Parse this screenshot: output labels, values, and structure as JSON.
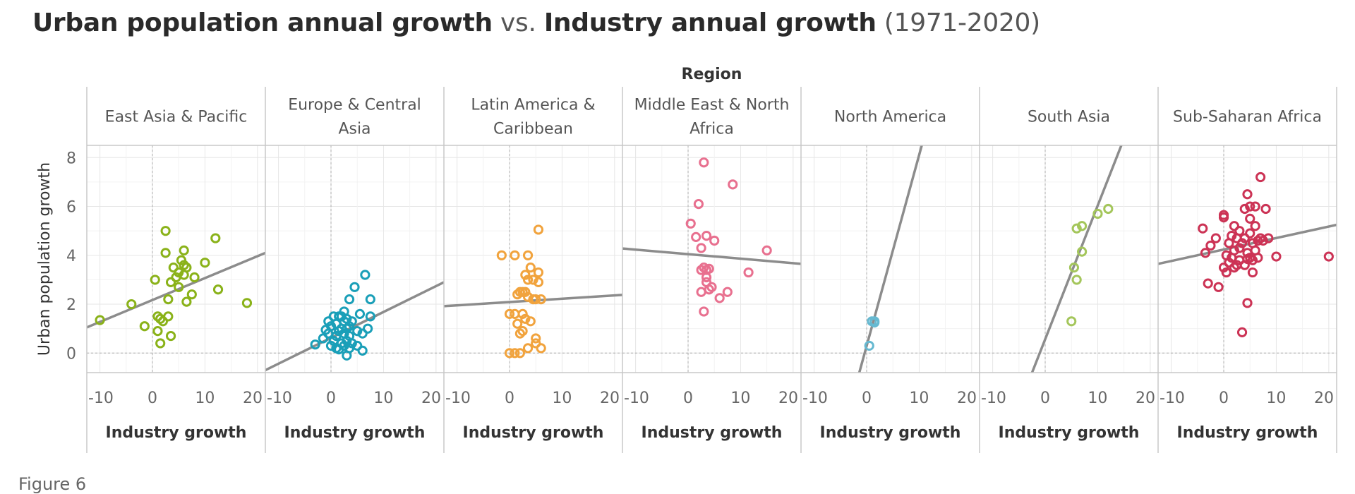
{
  "title": {
    "part1": "Urban population annual growth",
    "part2": "vs.",
    "part3": "Industry annual growth",
    "part4": "(1971-2020)"
  },
  "caption": "Figure 6",
  "chart_data": {
    "type": "scatter",
    "facet_label": "Region",
    "xlabel": "Industry growth",
    "ylabel": "Urban population growth",
    "xlim": [
      -12.5,
      21.5
    ],
    "ylim": [
      -0.8,
      8.5
    ],
    "xticks": [
      -10,
      0,
      10,
      20
    ],
    "yticks": [
      0,
      2,
      4,
      6,
      8
    ],
    "grid": true,
    "trend_lines": true,
    "panels": [
      {
        "region": "East Asia & Pacific",
        "label_lines": [
          "East Asia & Pacific"
        ],
        "color": "#8ab219",
        "trend": [
          [
            -12.5,
            1.05
          ],
          [
            21.5,
            4.1
          ]
        ],
        "points": [
          [
            -10,
            1.35
          ],
          [
            -4,
            2
          ],
          [
            -1.5,
            1.1
          ],
          [
            0.5,
            3
          ],
          [
            1,
            1.5
          ],
          [
            1,
            0.9
          ],
          [
            1.5,
            1.4
          ],
          [
            2,
            1.3
          ],
          [
            1.5,
            0.4
          ],
          [
            2.5,
            5
          ],
          [
            2.5,
            4.1
          ],
          [
            3,
            1.5
          ],
          [
            3,
            2.2
          ],
          [
            3.5,
            2.9
          ],
          [
            3.5,
            0.7
          ],
          [
            4,
            3.5
          ],
          [
            4.5,
            3.1
          ],
          [
            5,
            2.7
          ],
          [
            5,
            3.3
          ],
          [
            5.5,
            3.8
          ],
          [
            6,
            4.2
          ],
          [
            6,
            3.6
          ],
          [
            6.5,
            3.5
          ],
          [
            6,
            3.2
          ],
          [
            6.5,
            2.1
          ],
          [
            7.5,
            2.4
          ],
          [
            8,
            3.1
          ],
          [
            10,
            3.7
          ],
          [
            12,
            4.7
          ],
          [
            12.5,
            2.6
          ],
          [
            18,
            2.05
          ]
        ]
      },
      {
        "region": "Europe & Central Asia",
        "label_lines": [
          "Europe & Central",
          "Asia"
        ],
        "color": "#1a9fb8",
        "trend": [
          [
            -12.5,
            -0.7
          ],
          [
            21.5,
            2.9
          ]
        ],
        "points": [
          [
            -3,
            0.35
          ],
          [
            -1.5,
            0.6
          ],
          [
            -1,
            0.95
          ],
          [
            -0.5,
            1.3
          ],
          [
            0,
            0.3
          ],
          [
            0,
            1.1
          ],
          [
            0.5,
            0.5
          ],
          [
            0.5,
            1.5
          ],
          [
            1,
            0.7
          ],
          [
            1,
            1.2
          ],
          [
            1.5,
            0.15
          ],
          [
            1.5,
            0.9
          ],
          [
            1.5,
            1.5
          ],
          [
            2,
            0.4
          ],
          [
            2,
            1.0
          ],
          [
            2,
            1.5
          ],
          [
            2.5,
            0.3
          ],
          [
            2.5,
            0.8
          ],
          [
            2.5,
            1.3
          ],
          [
            2.5,
            1.7
          ],
          [
            3,
            -0.1
          ],
          [
            3,
            0.5
          ],
          [
            3,
            1.0
          ],
          [
            3,
            1.4
          ],
          [
            3.5,
            0.2
          ],
          [
            3.5,
            0.7
          ],
          [
            3.5,
            1.1
          ],
          [
            3.5,
            2.2
          ],
          [
            4,
            0.4
          ],
          [
            4,
            1.3
          ],
          [
            4.5,
            2.7
          ],
          [
            5,
            0.3
          ],
          [
            5,
            0.9
          ],
          [
            5.5,
            1.6
          ],
          [
            6,
            0.1
          ],
          [
            6,
            0.8
          ],
          [
            6.5,
            3.2
          ],
          [
            7,
            1.0
          ],
          [
            7.5,
            2.2
          ],
          [
            7.5,
            1.5
          ],
          [
            1,
            0.2
          ],
          [
            -0.5,
            0.8
          ]
        ]
      },
      {
        "region": "Latin America & Caribbean",
        "label_lines": [
          "Latin America &",
          "Caribbean"
        ],
        "color": "#f1a33d",
        "trend": [
          [
            -12.5,
            1.92
          ],
          [
            21.5,
            2.38
          ]
        ],
        "points": [
          [
            -1.5,
            4
          ],
          [
            0,
            1.6
          ],
          [
            0,
            0
          ],
          [
            1,
            4
          ],
          [
            1,
            1.6
          ],
          [
            1,
            0
          ],
          [
            1.5,
            2.4
          ],
          [
            1.5,
            1.2
          ],
          [
            2,
            2.5
          ],
          [
            2,
            0.8
          ],
          [
            2,
            0
          ],
          [
            2.5,
            2.5
          ],
          [
            2.5,
            1.6
          ],
          [
            2.5,
            0.9
          ],
          [
            3,
            3.2
          ],
          [
            3,
            2.5
          ],
          [
            3,
            1.4
          ],
          [
            3.5,
            4
          ],
          [
            3.5,
            3
          ],
          [
            3.5,
            2.3
          ],
          [
            3.5,
            0.2
          ],
          [
            4,
            3.5
          ],
          [
            4,
            1.3
          ],
          [
            4.5,
            3
          ],
          [
            4.5,
            2.2
          ],
          [
            5,
            0.6
          ],
          [
            5,
            0.4
          ],
          [
            5,
            2.2
          ],
          [
            5.5,
            2.9
          ],
          [
            5.5,
            3.3
          ],
          [
            5.5,
            5.05
          ],
          [
            6,
            0.2
          ],
          [
            6,
            2.2
          ]
        ]
      },
      {
        "region": "Middle East & North Africa",
        "label_lines": [
          "Middle East & North",
          "Africa"
        ],
        "color": "#e8708f",
        "trend": [
          [
            -12.5,
            4.28
          ],
          [
            21.5,
            3.65
          ]
        ],
        "points": [
          [
            0.5,
            5.3
          ],
          [
            1.5,
            4.75
          ],
          [
            2,
            6.1
          ],
          [
            2.5,
            4.3
          ],
          [
            2.5,
            3.4
          ],
          [
            2.5,
            2.5
          ],
          [
            3,
            7.8
          ],
          [
            3,
            3.5
          ],
          [
            3,
            1.7
          ],
          [
            3.5,
            4.8
          ],
          [
            3.5,
            3.4
          ],
          [
            3.5,
            3.1
          ],
          [
            3.5,
            2.9
          ],
          [
            4,
            3.45
          ],
          [
            4,
            2.6
          ],
          [
            4.5,
            2.7
          ],
          [
            5,
            4.6
          ],
          [
            6,
            2.25
          ],
          [
            7.5,
            2.5
          ],
          [
            8.5,
            6.9
          ],
          [
            11.5,
            3.3
          ],
          [
            15,
            4.2
          ]
        ]
      },
      {
        "region": "North America",
        "label_lines": [
          "North America"
        ],
        "color": "#66b9d1",
        "trend": [
          [
            -1.4,
            -0.8
          ],
          [
            10.5,
            8.5
          ]
        ],
        "points": [
          [
            0.5,
            0.3
          ],
          [
            1,
            1.3
          ],
          [
            1.5,
            1.3
          ],
          [
            1.5,
            1.25
          ]
        ]
      },
      {
        "region": "South Asia",
        "label_lines": [
          "South Asia"
        ],
        "color": "#a4c65b",
        "trend": [
          [
            -2.5,
            -0.8
          ],
          [
            14.5,
            8.5
          ]
        ],
        "points": [
          [
            5,
            1.3
          ],
          [
            5.5,
            3.5
          ],
          [
            6,
            3.0
          ],
          [
            6,
            5.1
          ],
          [
            7,
            4.15
          ],
          [
            7,
            5.2
          ],
          [
            10,
            5.7
          ],
          [
            12,
            5.9
          ]
        ]
      },
      {
        "region": "Sub-Saharan Africa",
        "label_lines": [
          "Sub-Saharan Africa"
        ],
        "color": "#cc3355",
        "trend": [
          [
            -12.5,
            3.65
          ],
          [
            21.5,
            5.25
          ]
        ],
        "points": [
          [
            -4,
            5.1
          ],
          [
            -3.5,
            4.1
          ],
          [
            -3,
            2.85
          ],
          [
            -2.5,
            4.4
          ],
          [
            -1.5,
            4.7
          ],
          [
            -1,
            2.7
          ],
          [
            0,
            3.5
          ],
          [
            0,
            5.55
          ],
          [
            0,
            5.65
          ],
          [
            0.5,
            3.3
          ],
          [
            0.5,
            4.0
          ],
          [
            1,
            3.7
          ],
          [
            1,
            4.5
          ],
          [
            1.5,
            4.8
          ],
          [
            1.5,
            3.9
          ],
          [
            2,
            3.5
          ],
          [
            2,
            4.2
          ],
          [
            2,
            5.2
          ],
          [
            2.5,
            3.6
          ],
          [
            2.5,
            4.7
          ],
          [
            3,
            3.8
          ],
          [
            3,
            4.3
          ],
          [
            3,
            5
          ],
          [
            3.5,
            0.85
          ],
          [
            3.5,
            4.5
          ],
          [
            4,
            3.6
          ],
          [
            4,
            4.7
          ],
          [
            4,
            5.9
          ],
          [
            4.5,
            2.05
          ],
          [
            4.5,
            3.85
          ],
          [
            4.5,
            4.1
          ],
          [
            4.5,
            6.5
          ],
          [
            5,
            3.9
          ],
          [
            5,
            4.9
          ],
          [
            5,
            5.5
          ],
          [
            5,
            6.0
          ],
          [
            5.5,
            3.3
          ],
          [
            5.5,
            3.8
          ],
          [
            5.5,
            4.5
          ],
          [
            6,
            4.2
          ],
          [
            6,
            5.2
          ],
          [
            6,
            6.0
          ],
          [
            6.5,
            3.9
          ],
          [
            6.5,
            4.6
          ],
          [
            7,
            7.2
          ],
          [
            7,
            4.7
          ],
          [
            7.5,
            4.6
          ],
          [
            8,
            5.9
          ],
          [
            8.5,
            4.7
          ],
          [
            10,
            3.95
          ],
          [
            20,
            3.95
          ]
        ]
      }
    ]
  }
}
